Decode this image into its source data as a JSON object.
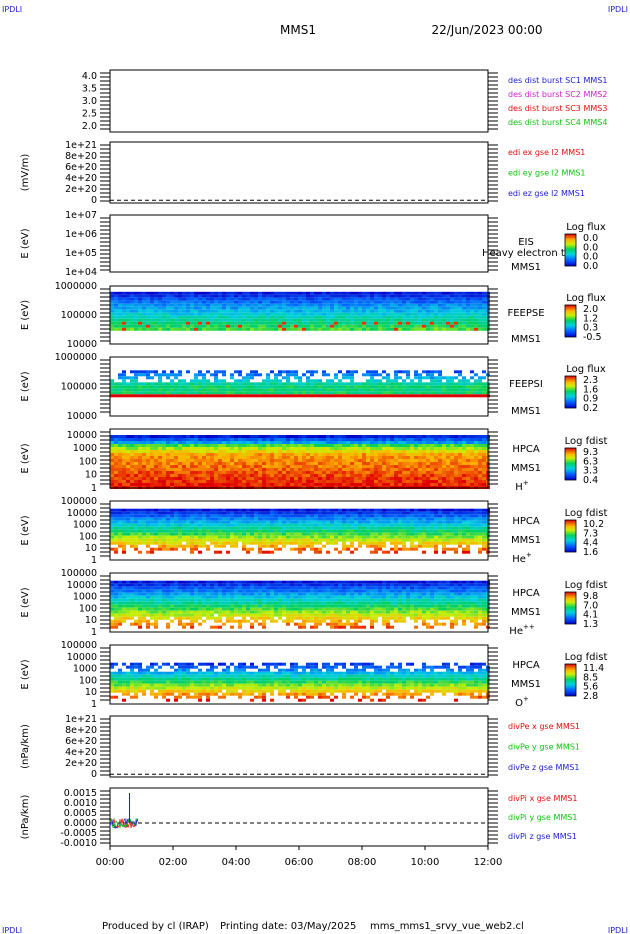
{
  "header": {
    "corner_tl": "IPDLI",
    "corner_tr": "IPDLI",
    "corner_bl": "IPDLI",
    "corner_br": "IPDLI",
    "spacecraft": "MMS1",
    "date": "22/Jun/2023 00:00"
  },
  "footer": {
    "produced_by": "Produced by cl (IRAP)",
    "printing_date": "Printing date: 03/May/2025",
    "file": "mms_mms1_srvy_vue_web2.cl"
  },
  "colors": {
    "sc1": "#1c1cd0",
    "sc2": "#d020d0",
    "sc3": "#e01010",
    "sc4": "#10c010",
    "x": "#e01010",
    "y": "#10c010",
    "z": "#1c1cd0"
  },
  "chart_data": {
    "type": "multi-panel",
    "time_axis": {
      "ticks": [
        "00:00",
        "02:00",
        "04:00",
        "06:00",
        "08:00",
        "10:00",
        "12:00"
      ],
      "range_hours": [
        0,
        12
      ]
    },
    "panels": [
      {
        "id": "dist",
        "kind": "line",
        "ylabel": "",
        "yticks": [
          "4.0",
          "3.5",
          "3.0",
          "2.5",
          "2.0"
        ],
        "ytick_values": [
          4.0,
          3.5,
          3.0,
          2.5,
          2.0
        ],
        "ylim": [
          1.75,
          4.25
        ],
        "legend": [
          {
            "text": "des dist burst SC1 MMS1",
            "color": "sc1"
          },
          {
            "text": "des dist burst SC2 MMS2",
            "color": "sc2"
          },
          {
            "text": "des dist burst SC3 MMS3",
            "color": "sc3"
          },
          {
            "text": "des dist burst SC4 MMS4",
            "color": "sc4"
          }
        ]
      },
      {
        "id": "edi",
        "kind": "line",
        "ylabel": "(mV/m)",
        "yticks": [
          "1e+21",
          "8e+20",
          "6e+20",
          "4e+20",
          "2e+20",
          "0"
        ],
        "ytick_values": [
          1e+21,
          8e+20,
          6e+20,
          4e+20,
          2e+20,
          0
        ],
        "ylim": [
          -5e+19,
          1.05e+21
        ],
        "zero_line": true,
        "legend": [
          {
            "text": "edi ex gse l2 MMS1",
            "color": "x"
          },
          {
            "text": "edi ey gse l2 MMS1",
            "color": "y"
          },
          {
            "text": "edi ez gse l2 MMS1",
            "color": "z"
          }
        ]
      },
      {
        "id": "eis",
        "kind": "spectrogram",
        "ylabel": "E (eV)",
        "yticks": [
          "1e+07",
          "1e+06",
          "1e+05",
          "1e+04"
        ],
        "ytick_values": [
          7,
          6,
          5,
          4
        ],
        "ylim": [
          4,
          7
        ],
        "instrument": [
          "EIS",
          "MMS1"
        ],
        "extra_label": "Heavy electron to",
        "cbar_title": "Log flux",
        "cbar_ticks": [
          "0.0",
          "0.0",
          "0.0",
          "0.0"
        ],
        "spectrum": null
      },
      {
        "id": "feepse",
        "kind": "spectrogram",
        "ylabel": "E (eV)",
        "yticks": [
          "1000000",
          "100000",
          "10000"
        ],
        "ytick_values": [
          6,
          5,
          4
        ],
        "ylim": [
          4,
          6
        ],
        "instrument": [
          "FEEPSE",
          "MMS1"
        ],
        "cbar_title": "Log flux",
        "cbar_ticks": [
          "2.0",
          "1.2",
          "0.3",
          "-0.5"
        ],
        "spectrum": {
          "top": 5.8,
          "bottom": 4.55,
          "profile": "feepse"
        }
      },
      {
        "id": "feepsi",
        "kind": "spectrogram",
        "ylabel": "E (eV)",
        "yticks": [
          "1000000",
          "100000",
          "10000"
        ],
        "ytick_values": [
          6,
          5,
          4
        ],
        "ylim": [
          4,
          6
        ],
        "instrument": [
          "FEEPSI",
          "MMS1"
        ],
        "cbar_title": "Log flux",
        "cbar_ticks": [
          "2.3",
          "1.6",
          "0.9",
          "0.2"
        ],
        "spectrum": {
          "top": 5.55,
          "bottom": 4.72,
          "profile": "feepsi"
        }
      },
      {
        "id": "hpca_h",
        "kind": "spectrogram",
        "ylabel": "E (eV)",
        "yticks": [
          "10000",
          "1000",
          "100",
          "10",
          "1"
        ],
        "ytick_values": [
          4,
          3,
          2,
          1,
          0
        ],
        "ylim": [
          0,
          4.45
        ],
        "instrument": [
          "HPCA",
          "MMS1"
        ],
        "species": "H",
        "species_charge": "+",
        "cbar_title": "Log fdist",
        "cbar_ticks": [
          "9.3",
          "6.3",
          "3.3",
          "0.4"
        ],
        "spectrum": {
          "top": 4.0,
          "bottom": 0.0,
          "profile": "hplus"
        }
      },
      {
        "id": "hpca_he",
        "kind": "spectrogram",
        "ylabel": "E (eV)",
        "yticks": [
          "100000",
          "10000",
          "1000",
          "100",
          "10",
          "1"
        ],
        "ytick_values": [
          5,
          4,
          3,
          2,
          1,
          0
        ],
        "ylim": [
          0,
          5
        ],
        "instrument": [
          "HPCA",
          "MMS1"
        ],
        "species": "He",
        "species_charge": "+",
        "cbar_title": "Log fdist",
        "cbar_ticks": [
          "10.2",
          "7.3",
          "4.4",
          "1.6"
        ],
        "spectrum": {
          "top": 4.35,
          "bottom": 0.6,
          "profile": "heplus"
        }
      },
      {
        "id": "hpca_hepp",
        "kind": "spectrogram",
        "ylabel": "E (eV)",
        "yticks": [
          "100000",
          "10000",
          "1000",
          "100",
          "10",
          "1"
        ],
        "ytick_values": [
          5,
          4,
          3,
          2,
          1,
          0
        ],
        "ylim": [
          0,
          5
        ],
        "instrument": [
          "HPCA",
          "MMS1"
        ],
        "species": "He",
        "species_charge": "++",
        "cbar_title": "Log fdist",
        "cbar_ticks": [
          "9.8",
          "7.0",
          "4.1",
          "1.3"
        ],
        "spectrum": {
          "top": 4.35,
          "bottom": 0.4,
          "profile": "hepp"
        }
      },
      {
        "id": "hpca_o",
        "kind": "spectrogram",
        "ylabel": "E (eV)",
        "yticks": [
          "100000",
          "10000",
          "1000",
          "100",
          "10",
          "1"
        ],
        "ytick_values": [
          5,
          4,
          3,
          2,
          1,
          0
        ],
        "ylim": [
          0,
          5
        ],
        "instrument": [
          "HPCA",
          "MMS1"
        ],
        "species": "O",
        "species_charge": "+",
        "cbar_title": "Log fdist",
        "cbar_ticks": [
          "11.4",
          "8.5",
          "5.6",
          "2.8"
        ],
        "spectrum": {
          "top": 3.5,
          "bottom": 0.4,
          "profile": "oplus"
        }
      },
      {
        "id": "divpe",
        "kind": "line",
        "ylabel": "(nPa/km)",
        "yticks": [
          "1e+21",
          "8e+20",
          "6e+20",
          "4e+20",
          "2e+20",
          "0"
        ],
        "ytick_values": [
          1e+21,
          8e+20,
          6e+20,
          4e+20,
          2e+20,
          0
        ],
        "ylim": [
          -5e+19,
          1.05e+21
        ],
        "zero_line": true,
        "legend": [
          {
            "text": "divPe x gse MMS1",
            "color": "x"
          },
          {
            "text": "divPe y gse MMS1",
            "color": "y"
          },
          {
            "text": "divPe z gse MMS1",
            "color": "z"
          }
        ]
      },
      {
        "id": "divpi",
        "kind": "line",
        "ylabel": "(nPa/km)",
        "yticks": [
          "0.0015",
          "0.0010",
          "0.0005",
          "0.0000",
          "-0.0005",
          "-0.0010"
        ],
        "ytick_values": [
          0.0015,
          0.001,
          0.0005,
          0,
          -0.0005,
          -0.001
        ],
        "ylim": [
          -0.00115,
          0.00175
        ],
        "zero_line": true,
        "noise": {
          "t_start_hours": 0.0,
          "t_end_hours": 0.9,
          "amplitude": 0.00025,
          "peak": 0.0015
        },
        "legend": [
          {
            "text": "divPi x gse MMS1",
            "color": "x"
          },
          {
            "text": "divPi y gse MMS1",
            "color": "y"
          },
          {
            "text": "divPi z gse MMS1",
            "color": "z"
          }
        ]
      }
    ]
  }
}
